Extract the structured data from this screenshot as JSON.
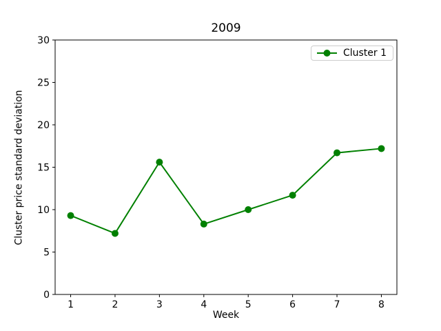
{
  "window": {
    "background": "#ffffff"
  },
  "chart_data": {
    "type": "line",
    "title": "2009",
    "xlabel": "Week",
    "ylabel": "Cluster price standard deviation",
    "categories": [
      1,
      2,
      3,
      4,
      5,
      6,
      7,
      8
    ],
    "xtick_labels": [
      "1",
      "2",
      "3",
      "4",
      "5",
      "6",
      "7",
      "8"
    ],
    "yticks": [
      0,
      5,
      10,
      15,
      20,
      25,
      30
    ],
    "xlim": [
      0.65,
      8.35
    ],
    "ylim": [
      0,
      30
    ],
    "grid": false,
    "legend_position": "upper-right",
    "series": [
      {
        "name": "Cluster 1",
        "color": "#008000",
        "marker": "circle",
        "values": [
          9.3,
          7.2,
          15.6,
          8.3,
          10.0,
          11.7,
          16.7,
          17.2
        ]
      }
    ],
    "axis_color": "#000000",
    "text_color": "#000000"
  }
}
